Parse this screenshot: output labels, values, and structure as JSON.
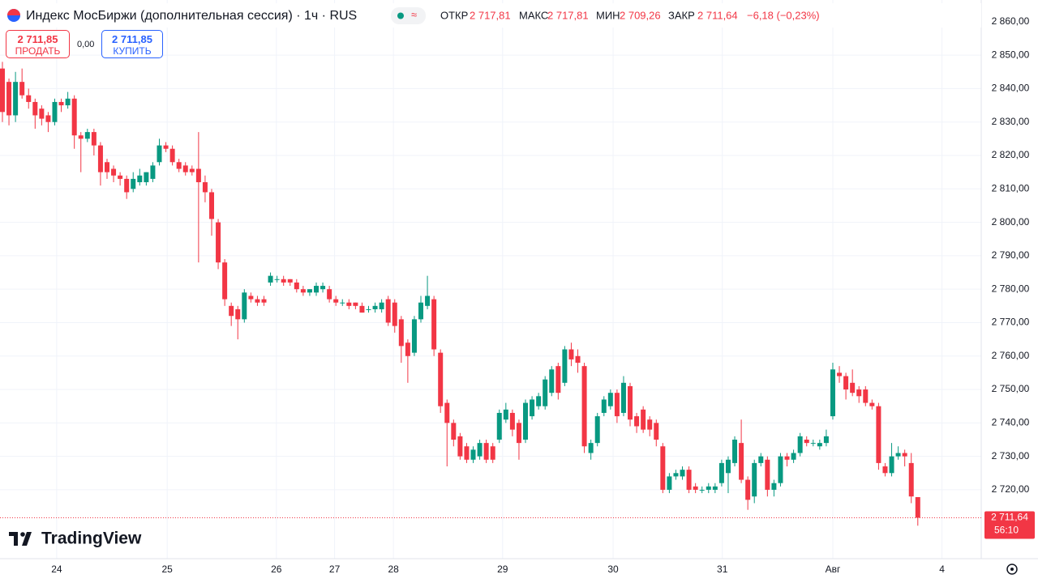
{
  "chart_data": {
    "type": "candlestick",
    "title": "Индекс МосБиржи (дополнительная сессия) · 1ч · RUS",
    "header": {
      "open_label": "ОТКР",
      "open": "2 717,81",
      "high_label": "МАКС",
      "high": "2 717,81",
      "low_label": "МИН",
      "low": "2 709,26",
      "close_label": "ЗАКР",
      "close": "2 711,64",
      "change": "−6,18 (−0,23%)"
    },
    "trade": {
      "sell_price": "2 711,85",
      "sell": "ПРОДАТЬ",
      "spread": "0,00",
      "buy_price": "2 711,85",
      "buy": "КУПИТЬ"
    },
    "brand": "TradingView",
    "up_color": "#089981",
    "down_color": "#f23645",
    "grid": true,
    "last_price": {
      "value": 2711.64,
      "label": "2 711,64"
    },
    "countdown": "56:10",
    "ylim": [
      2699.4,
      2866.5
    ],
    "yticks": [
      {
        "value": 2720,
        "label": "2 720,00"
      },
      {
        "value": 2730,
        "label": "2 730,00"
      },
      {
        "value": 2740,
        "label": "2 740,00"
      },
      {
        "value": 2750,
        "label": "2 750,00"
      },
      {
        "value": 2760,
        "label": "2 760,00"
      },
      {
        "value": 2770,
        "label": "2 770,00"
      },
      {
        "value": 2780,
        "label": "2 780,00"
      },
      {
        "value": 2790,
        "label": "2 790,00"
      },
      {
        "value": 2800,
        "label": "2 800,00"
      },
      {
        "value": 2810,
        "label": "2 810,00"
      },
      {
        "value": 2820,
        "label": "2 820,00"
      },
      {
        "value": 2830,
        "label": "2 830,00"
      },
      {
        "value": 2840,
        "label": "2 840,00"
      },
      {
        "value": 2850,
        "label": "2 850,00"
      },
      {
        "value": 2860,
        "label": "2 860,00"
      }
    ],
    "xlim": [
      -0.37,
      149.7
    ],
    "xticks": [
      {
        "value": 8.3,
        "label": "24"
      },
      {
        "value": 25.2,
        "label": "25"
      },
      {
        "value": 41.9,
        "label": "26"
      },
      {
        "value": 50.8,
        "label": "27"
      },
      {
        "value": 59.8,
        "label": "28"
      },
      {
        "value": 76.5,
        "label": "29"
      },
      {
        "value": 93.4,
        "label": "30"
      },
      {
        "value": 110.1,
        "label": "31"
      },
      {
        "value": 127,
        "label": "Авг"
      },
      {
        "value": 143.7,
        "label": "4"
      }
    ],
    "ohlc": [
      [
        2846,
        2848,
        2830,
        2833
      ],
      [
        2842,
        2843,
        2829,
        2832
      ],
      [
        2832,
        2845,
        2830,
        2842
      ],
      [
        2842,
        2846,
        2837,
        2838
      ],
      [
        2838,
        2840,
        2834,
        2836
      ],
      [
        2836,
        2837,
        2828,
        2832
      ],
      [
        2834,
        2835,
        2829,
        2831
      ],
      [
        2832,
        2833,
        2827,
        2830
      ],
      [
        2830,
        2837,
        2829,
        2836
      ],
      [
        2836,
        2837,
        2833,
        2835
      ],
      [
        2835,
        2839,
        2834,
        2837
      ],
      [
        2837,
        2838,
        2822,
        2826
      ],
      [
        2826,
        2827,
        2815,
        2825
      ],
      [
        2825,
        2828,
        2824,
        2827
      ],
      [
        2827,
        2828,
        2820,
        2823
      ],
      [
        2823,
        2824,
        2811,
        2815
      ],
      [
        2818,
        2819,
        2813,
        2815
      ],
      [
        2816,
        2817,
        2812,
        2814
      ],
      [
        2814,
        2815,
        2811,
        2813
      ],
      [
        2813,
        2814,
        2807,
        2809
      ],
      [
        2810,
        2815,
        2809,
        2813
      ],
      [
        2812,
        2816,
        2811,
        2814
      ],
      [
        2812,
        2815,
        2811,
        2815
      ],
      [
        2813,
        2818,
        2812,
        2817
      ],
      [
        2818,
        2825,
        2817,
        2823
      ],
      [
        2823,
        2824,
        2821,
        2822
      ],
      [
        2822,
        2823,
        2817,
        2818
      ],
      [
        2818,
        2819,
        2815,
        2816
      ],
      [
        2817,
        2818,
        2814,
        2815
      ],
      [
        2816,
        2817,
        2814,
        2815
      ],
      [
        2816,
        2827,
        2788,
        2812
      ],
      [
        2812,
        2814,
        2806,
        2809
      ],
      [
        2809,
        2810,
        2796,
        2801
      ],
      [
        2800,
        2801,
        2786,
        2788
      ],
      [
        2788,
        2789,
        2775,
        2777
      ],
      [
        2775,
        2776,
        2769,
        2772
      ],
      [
        2774,
        2775,
        2765,
        2771
      ],
      [
        2771,
        2780,
        2770,
        2779
      ],
      [
        2778,
        2779,
        2776,
        2777
      ],
      [
        2777,
        2778,
        2775,
        2776
      ],
      [
        2777,
        2778,
        2775,
        2776
      ],
      [
        2782,
        2785,
        2781,
        2784
      ],
      [
        2783,
        2784,
        2782,
        2783
      ],
      [
        2783,
        2784,
        2781,
        2782
      ],
      [
        2783,
        2783,
        2781,
        2782
      ],
      [
        2782,
        2783,
        2779,
        2780
      ],
      [
        2780,
        2781,
        2778,
        2779
      ],
      [
        2779,
        2780,
        2778,
        2780
      ],
      [
        2779,
        2782,
        2778,
        2781
      ],
      [
        2780,
        2782,
        2779,
        2781
      ],
      [
        2780,
        2781,
        2776,
        2777
      ],
      [
        2777,
        2778,
        2775,
        2776
      ],
      [
        2776,
        2777,
        2775,
        2776
      ],
      [
        2776,
        2777,
        2774,
        2775
      ],
      [
        2776,
        2776,
        2774,
        2775
      ],
      [
        2775,
        2776,
        2773,
        2773
      ],
      [
        2774,
        2775,
        2773,
        2774
      ],
      [
        2774,
        2776,
        2773,
        2775
      ],
      [
        2774,
        2777,
        2773,
        2776
      ],
      [
        2777,
        2778,
        2769,
        2770
      ],
      [
        2776,
        2777,
        2767,
        2769
      ],
      [
        2771,
        2772,
        2758,
        2763
      ],
      [
        2764,
        2765,
        2752,
        2760
      ],
      [
        2761,
        2772,
        2760,
        2771
      ],
      [
        2771,
        2778,
        2770,
        2776
      ],
      [
        2775,
        2784,
        2774,
        2778
      ],
      [
        2777,
        2778,
        2760,
        2762
      ],
      [
        2761,
        2762,
        2743,
        2745
      ],
      [
        2746,
        2747,
        2727,
        2740
      ],
      [
        2740,
        2741,
        2733,
        2735
      ],
      [
        2736,
        2737,
        2729,
        2730
      ],
      [
        2733,
        2734,
        2728,
        2729
      ],
      [
        2729,
        2733,
        2728,
        2732
      ],
      [
        2730,
        2735,
        2729,
        2734
      ],
      [
        2734,
        2735,
        2728,
        2729
      ],
      [
        2733,
        2734,
        2728,
        2729
      ],
      [
        2735,
        2744,
        2734,
        2743
      ],
      [
        2741,
        2746,
        2740,
        2744
      ],
      [
        2743,
        2744,
        2736,
        2738
      ],
      [
        2740,
        2741,
        2729,
        2734
      ],
      [
        2735,
        2747,
        2734,
        2746
      ],
      [
        2742,
        2748,
        2741,
        2747
      ],
      [
        2745,
        2749,
        2744,
        2748
      ],
      [
        2745,
        2754,
        2744,
        2753
      ],
      [
        2749,
        2757,
        2748,
        2756
      ],
      [
        2757,
        2758,
        2747,
        2749
      ],
      [
        2752,
        2763,
        2751,
        2762
      ],
      [
        2762,
        2764,
        2757,
        2759
      ],
      [
        2760,
        2762,
        2755,
        2758
      ],
      [
        2757,
        2758,
        2731,
        2733
      ],
      [
        2731,
        2735,
        2729,
        2734
      ],
      [
        2734,
        2743,
        2733,
        2742
      ],
      [
        2743,
        2748,
        2742,
        2747
      ],
      [
        2745,
        2750,
        2744,
        2749
      ],
      [
        2749,
        2750,
        2740,
        2742
      ],
      [
        2743,
        2754,
        2742,
        2752
      ],
      [
        2751,
        2752,
        2739,
        2741
      ],
      [
        2742,
        2743,
        2737,
        2739
      ],
      [
        2744,
        2745,
        2737,
        2738
      ],
      [
        2741,
        2742,
        2736,
        2738
      ],
      [
        2740,
        2741,
        2733,
        2735
      ],
      [
        2733,
        2734,
        2719,
        2720
      ],
      [
        2720,
        2725,
        2719,
        2724
      ],
      [
        2724,
        2726,
        2723,
        2725
      ],
      [
        2724,
        2727,
        2723,
        2726
      ],
      [
        2726,
        2727,
        2719,
        2720
      ],
      [
        2721,
        2722,
        2719,
        2720
      ],
      [
        2720,
        2721,
        2719,
        2720
      ],
      [
        2720,
        2722,
        2719,
        2721
      ],
      [
        2720,
        2722,
        2719,
        2721
      ],
      [
        2722,
        2729,
        2721,
        2728
      ],
      [
        2725,
        2730,
        2719,
        2729
      ],
      [
        2728,
        2736,
        2727,
        2735
      ],
      [
        2734,
        2741,
        2722,
        2723
      ],
      [
        2723,
        2724,
        2714,
        2717
      ],
      [
        2718,
        2729,
        2716,
        2728
      ],
      [
        2728,
        2731,
        2727,
        2730
      ],
      [
        2729,
        2730,
        2718,
        2720
      ],
      [
        2720,
        2723,
        2718,
        2722
      ],
      [
        2722,
        2731,
        2721,
        2730
      ],
      [
        2730,
        2731,
        2727,
        2729
      ],
      [
        2729,
        2732,
        2728,
        2731
      ],
      [
        2731,
        2737,
        2730,
        2736
      ],
      [
        2735,
        2736,
        2733,
        2734
      ],
      [
        2734,
        2735,
        2733,
        2734
      ],
      [
        2733,
        2735,
        2732,
        2734
      ],
      [
        2734,
        2738,
        2733,
        2736
      ],
      [
        2742,
        2758,
        2741,
        2756
      ],
      [
        2755,
        2757,
        2752,
        2754
      ],
      [
        2754,
        2755,
        2747,
        2750
      ],
      [
        2752,
        2756,
        2748,
        2749
      ],
      [
        2750,
        2751,
        2746,
        2748
      ],
      [
        2750,
        2751,
        2745,
        2746
      ],
      [
        2746,
        2747,
        2744,
        2745
      ],
      [
        2745,
        2746,
        2726,
        2728
      ],
      [
        2727,
        2728,
        2724,
        2725
      ],
      [
        2725,
        2734,
        2724,
        2730
      ],
      [
        2730,
        2733,
        2729,
        2731
      ],
      [
        2731,
        2732,
        2727,
        2730
      ],
      [
        2728,
        2731,
        2716,
        2718
      ],
      [
        2717.81,
        2717.81,
        2709.26,
        2711.64
      ]
    ]
  }
}
